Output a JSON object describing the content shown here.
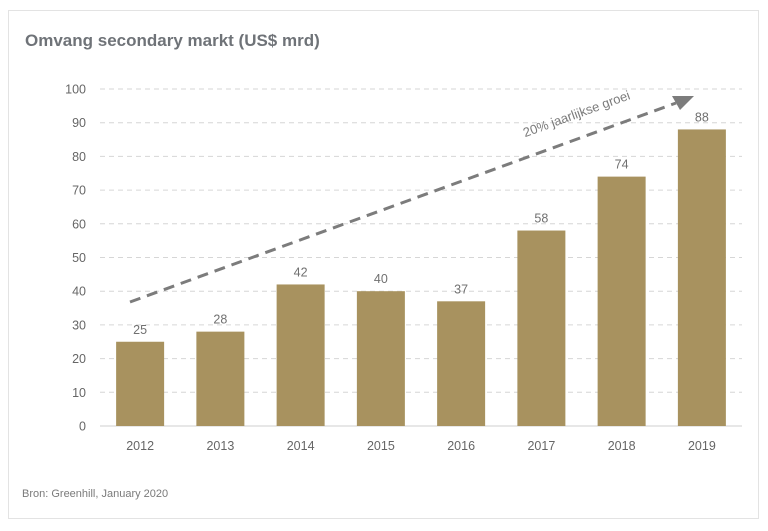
{
  "chart_data": {
    "type": "bar",
    "title": "Omvang secondary markt (US$ mrd)",
    "categories": [
      "2012",
      "2013",
      "2014",
      "2015",
      "2016",
      "2017",
      "2018",
      "2019"
    ],
    "values": [
      25,
      28,
      42,
      40,
      37,
      58,
      74,
      88
    ],
    "ylim": [
      0,
      100
    ],
    "yticks": [
      0,
      10,
      20,
      30,
      40,
      50,
      60,
      70,
      80,
      90,
      100
    ],
    "grid": true,
    "bar_color": "#a8925f",
    "annotation": "20% jaarlijkse groei",
    "source": "Bron: Greenhill, January 2020"
  }
}
